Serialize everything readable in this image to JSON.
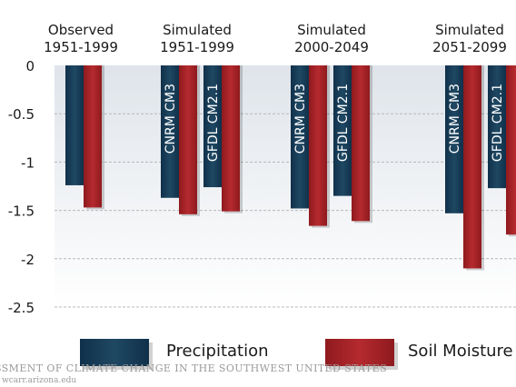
{
  "chart_data": {
    "type": "bar",
    "groups": [
      {
        "label_line1": "Observed",
        "label_line2": "1951-1999",
        "models": [
          ""
        ]
      },
      {
        "label_line1": "Simulated",
        "label_line2": "1951-1999",
        "models": [
          "CNRM CM3",
          "GFDL CM2.1"
        ]
      },
      {
        "label_line1": "Simulated",
        "label_line2": "2000-2049",
        "models": [
          "CNRM CM3",
          "GFDL CM2.1"
        ]
      },
      {
        "label_line1": "Simulated",
        "label_line2": "2051-2099",
        "models": [
          "CNRM CM3",
          "GFDL CM2.1"
        ]
      }
    ],
    "series": [
      {
        "name": "Precipitation",
        "color": "#173a52",
        "values": [
          -1.24,
          -1.37,
          -1.26,
          -1.48,
          -1.35,
          -1.53,
          -1.27
        ]
      },
      {
        "name": "Soil Moisture",
        "color": "#a52226",
        "values": [
          -1.47,
          -1.54,
          -1.51,
          -1.66,
          -1.61,
          -2.1,
          -1.75
        ]
      }
    ],
    "yticks": [
      "0",
      "-0.5",
      "-1",
      "-1.5",
      "-2",
      "-2.5"
    ],
    "ylim": [
      -2.5,
      0
    ],
    "grid": true,
    "legend_position": "bottom"
  },
  "watermark": {
    "line1": "SSMENT OF CLIMATE CHANGE IN THE SOUTHWEST UNITED STATES",
    "line2": "wcarr.arizona.edu"
  }
}
